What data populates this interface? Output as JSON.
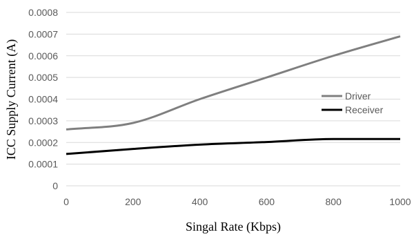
{
  "chart_data": {
    "type": "line",
    "title": "",
    "xlabel": "Singal Rate (Kbps)",
    "ylabel": "ICC Supply Current (A)",
    "xlim": [
      0,
      1000
    ],
    "ylim": [
      0,
      0.0008
    ],
    "x_ticks": [
      "0",
      "200",
      "400",
      "600",
      "800",
      "1000"
    ],
    "y_ticks": [
      "0",
      "0.0001",
      "0.0002",
      "0.0003",
      "0.0004",
      "0.0005",
      "0.0006",
      "0.0007",
      "0.0008"
    ],
    "x": [
      0,
      200,
      400,
      600,
      800,
      1000
    ],
    "grid": "horizontal",
    "legend_position": "right",
    "series": [
      {
        "name": "Driver",
        "color": "#7f7f7f",
        "values": [
          0.00026,
          0.00029,
          0.0004,
          0.0005,
          0.0006,
          0.00069
        ]
      },
      {
        "name": "Receiver",
        "color": "#000000",
        "values": [
          0.000147,
          0.00017,
          0.00019,
          0.000202,
          0.000216,
          0.000216
        ]
      }
    ]
  }
}
